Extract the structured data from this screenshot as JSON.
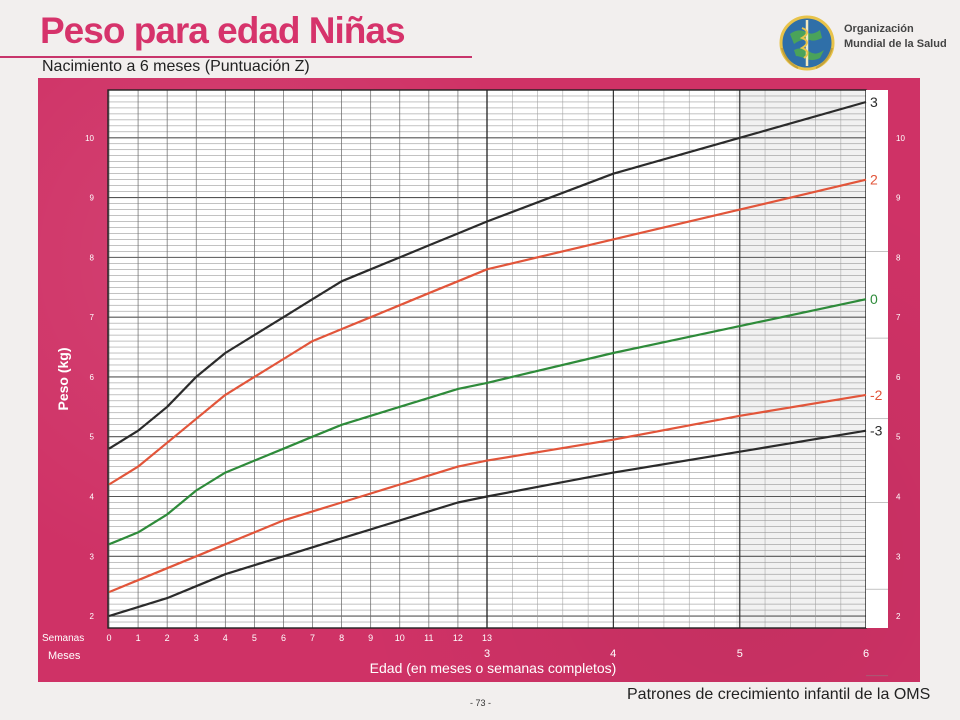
{
  "header": {
    "title": "Peso para edad Niñas",
    "subtitle": "Nacimiento a 6 meses (Puntuación Z)",
    "org_line1": "Organización",
    "org_line2": "Mundial de la Salud",
    "logo_icon": "who-emblem-icon"
  },
  "footer": {
    "page_number": "- 73 -",
    "text": "Patrones de crecimiento infantil de la OMS"
  },
  "colors": {
    "frame": "#cf3266",
    "plot_bg": "#ffffff",
    "line_3": "#2b2b2b",
    "line_2": "#e2553a",
    "line_0": "#2e8b3a",
    "title": "#d6336b"
  },
  "chart_data": {
    "type": "line",
    "title": "Peso para edad Niñas",
    "subtitle": "Nacimiento a 6 meses (Puntuación Z)",
    "xlabel": "Edad (en meses o semanas completos)",
    "ylabel": "Peso (kg)",
    "xlim": [
      0,
      26
    ],
    "ylim": [
      1.8,
      10.8
    ],
    "x_units": "weeks",
    "grid": true,
    "weeks_label": "Semanas",
    "months_label": "Meses",
    "week_ticks": [
      0,
      1,
      2,
      3,
      4,
      5,
      6,
      7,
      8,
      9,
      10,
      11,
      12,
      13
    ],
    "month_ticks": [
      {
        "label": "3",
        "week": 13.04
      },
      {
        "label": "4",
        "week": 17.38
      },
      {
        "label": "5",
        "week": 21.73
      },
      {
        "label": "6",
        "week": 26.07
      }
    ],
    "y_ticks": [
      2,
      3,
      4,
      5,
      6,
      7,
      8,
      9,
      10
    ],
    "series": [
      {
        "name": "3",
        "color": "#2b2b2b",
        "x": [
          0,
          1,
          2,
          3,
          4,
          5,
          6,
          7,
          8,
          9,
          10,
          11,
          12,
          13,
          17.38,
          21.73,
          26.07
        ],
        "y": [
          4.8,
          5.1,
          5.5,
          6.0,
          6.4,
          6.7,
          7.0,
          7.3,
          7.6,
          7.8,
          8.0,
          8.2,
          8.4,
          8.6,
          9.4,
          10.0,
          10.6
        ]
      },
      {
        "name": "2",
        "color": "#e2553a",
        "x": [
          0,
          1,
          2,
          3,
          4,
          5,
          6,
          7,
          8,
          9,
          10,
          11,
          12,
          13,
          17.38,
          21.73,
          26.07
        ],
        "y": [
          4.2,
          4.5,
          4.9,
          5.3,
          5.7,
          6.0,
          6.3,
          6.6,
          6.8,
          7.0,
          7.2,
          7.4,
          7.6,
          7.8,
          8.3,
          8.8,
          9.3
        ]
      },
      {
        "name": "0",
        "color": "#2e8b3a",
        "x": [
          0,
          1,
          2,
          3,
          4,
          5,
          6,
          7,
          8,
          9,
          10,
          11,
          12,
          13,
          17.38,
          21.73,
          26.07
        ],
        "y": [
          3.2,
          3.4,
          3.7,
          4.1,
          4.4,
          4.6,
          4.8,
          5.0,
          5.2,
          5.35,
          5.5,
          5.65,
          5.8,
          5.9,
          6.4,
          6.85,
          7.3
        ]
      },
      {
        "name": "-2",
        "color": "#e2553a",
        "x": [
          0,
          1,
          2,
          3,
          4,
          5,
          6,
          7,
          8,
          9,
          10,
          11,
          12,
          13,
          17.38,
          21.73,
          26.07
        ],
        "y": [
          2.4,
          2.6,
          2.8,
          3.0,
          3.2,
          3.4,
          3.6,
          3.75,
          3.9,
          4.05,
          4.2,
          4.35,
          4.5,
          4.6,
          4.95,
          5.35,
          5.7
        ]
      },
      {
        "name": "-3",
        "color": "#2b2b2b",
        "x": [
          0,
          1,
          2,
          3,
          4,
          5,
          6,
          7,
          8,
          9,
          10,
          11,
          12,
          13,
          17.38,
          21.73,
          26.07
        ],
        "y": [
          2.0,
          2.15,
          2.3,
          2.5,
          2.7,
          2.85,
          3.0,
          3.15,
          3.3,
          3.45,
          3.6,
          3.75,
          3.9,
          4.0,
          4.4,
          4.75,
          5.1
        ]
      }
    ]
  }
}
